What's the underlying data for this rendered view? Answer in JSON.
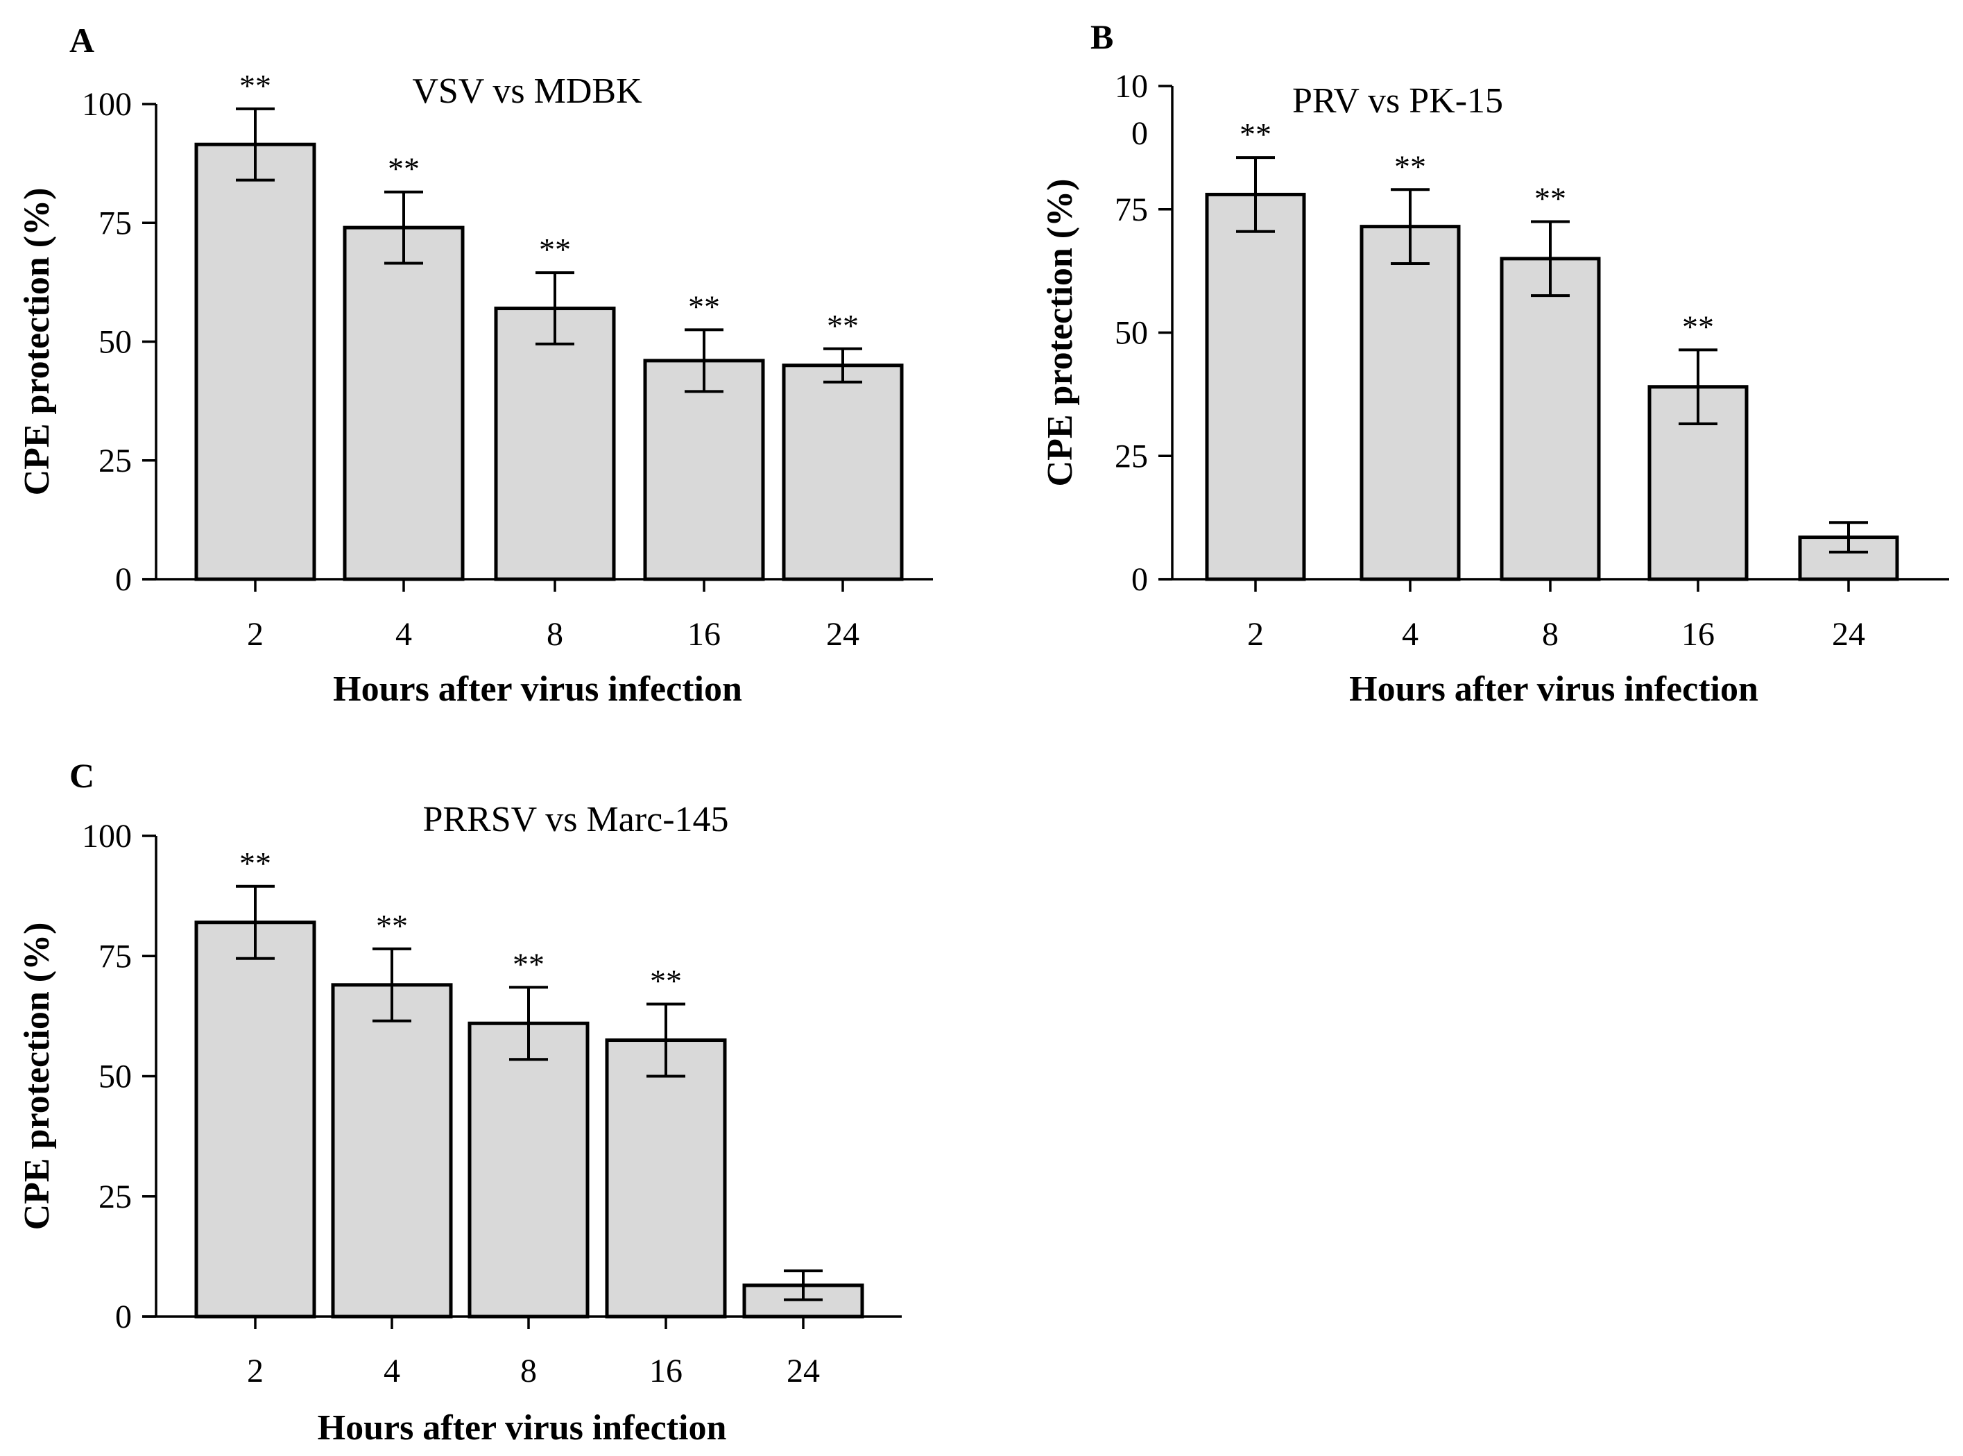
{
  "colors": {
    "bar_fill": "#d9d9d9",
    "stroke": "#000000",
    "background": "#ffffff"
  },
  "chart_data": [
    {
      "panel": "A",
      "type": "bar",
      "title": "VSV vs MDBK",
      "xlabel": "Hours after virus infection",
      "ylabel": "CPE protection (%)",
      "categories": [
        "2",
        "4",
        "8",
        "16",
        "24"
      ],
      "values": [
        91.5,
        74,
        57,
        46,
        45
      ],
      "errors": [
        7.5,
        7.5,
        7.5,
        6.5,
        3.5
      ],
      "significance": [
        "**",
        "**",
        "**",
        "**",
        "**"
      ],
      "ylim": [
        0,
        100
      ],
      "yticks": [
        0,
        25,
        50,
        75,
        100
      ],
      "ytick_labels": [
        "0",
        "25",
        "50",
        "75",
        "100"
      ]
    },
    {
      "panel": "B",
      "type": "bar",
      "title": "PRV vs PK-15",
      "xlabel": "Hours after virus infection",
      "ylabel": "CPE protection (%)",
      "categories": [
        "2",
        "4",
        "8",
        "16",
        "24"
      ],
      "values": [
        78,
        71.5,
        65,
        39,
        8.5
      ],
      "errors": [
        7.5,
        7.5,
        7.5,
        7.5,
        3
      ],
      "significance": [
        "**",
        "**",
        "**",
        "**",
        ""
      ],
      "ylim": [
        0,
        100
      ],
      "yticks": [
        0,
        25,
        50,
        75,
        100
      ],
      "ytick_labels": [
        "0",
        "25",
        "50",
        "75",
        "10\n0"
      ]
    },
    {
      "panel": "C",
      "type": "bar",
      "title": "PRRSV vs Marc-145",
      "xlabel": "Hours after virus infection",
      "ylabel": "CPE protection (%)",
      "categories": [
        "2",
        "4",
        "8",
        "16",
        "24"
      ],
      "values": [
        82,
        69,
        61,
        57.5,
        6.5
      ],
      "errors": [
        7.5,
        7.5,
        7.5,
        7.5,
        3
      ],
      "significance": [
        "**",
        "**",
        "**",
        "**",
        ""
      ],
      "ylim": [
        0,
        100
      ],
      "yticks": [
        0,
        25,
        50,
        75,
        100
      ],
      "ytick_labels": [
        "0",
        "25",
        "50",
        "75",
        "100"
      ]
    }
  ]
}
